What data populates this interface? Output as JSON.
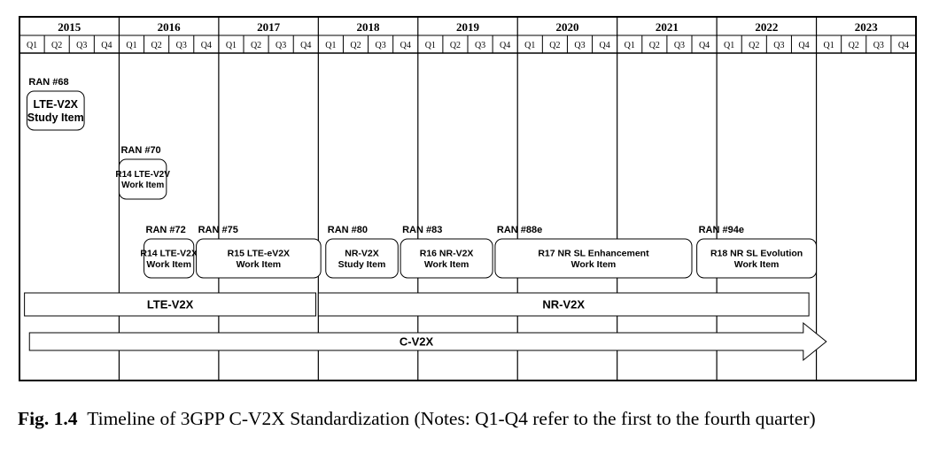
{
  "years": [
    "2015",
    "2016",
    "2017",
    "2018",
    "2019",
    "2020",
    "2021",
    "2022",
    "2023"
  ],
  "quarters": [
    "Q1",
    "Q2",
    "Q3",
    "Q4"
  ],
  "items": [
    {
      "meeting": "RAN #68",
      "lines": [
        "LTE-V2X",
        "Study Item"
      ],
      "start": 0.3,
      "end": 2.6,
      "row": 0
    },
    {
      "meeting": "RAN #70",
      "lines": [
        "R14 LTE-V2V",
        "Work Item"
      ],
      "start": 4.0,
      "end": 5.9,
      "row": 1
    },
    {
      "meeting": "RAN #72",
      "lines": [
        "R14 LTE-V2X",
        "Work Item"
      ],
      "start": 5.0,
      "end": 7.0,
      "row": 2
    },
    {
      "meeting": "RAN #75",
      "lines": [
        "R15 LTE-eV2X",
        "Work Item"
      ],
      "start": 7.1,
      "end": 12.1,
      "row": 2
    },
    {
      "meeting": "RAN #80",
      "lines": [
        "NR-V2X",
        "Study Item"
      ],
      "start": 12.3,
      "end": 15.2,
      "row": 2
    },
    {
      "meeting": "RAN #83",
      "lines": [
        "R16 NR-V2X",
        "Work Item"
      ],
      "start": 15.3,
      "end": 19.0,
      "row": 2
    },
    {
      "meeting": "RAN #88e",
      "lines": [
        "R17 NR SL Enhancement",
        "Work Item"
      ],
      "start": 19.1,
      "end": 27.0,
      "row": 2
    },
    {
      "meeting": "RAN #94e",
      "lines": [
        "R18 NR SL Evolution",
        "Work Item"
      ],
      "start": 27.2,
      "end": 32.0,
      "row": 2
    }
  ],
  "bands": [
    {
      "label": "LTE-V2X",
      "start": 0.2,
      "end": 11.9
    },
    {
      "label": "NR-V2X",
      "start": 12.0,
      "end": 31.7
    }
  ],
  "arrow": {
    "label": "C-V2X",
    "start": 0.4,
    "end": 32.4
  },
  "caption": {
    "fig_label": "Fig. 1.4",
    "text": "Timeline of 3GPP C-V2X Standardization (Notes: Q1-Q4 refer to the first to the fourth quarter)"
  }
}
